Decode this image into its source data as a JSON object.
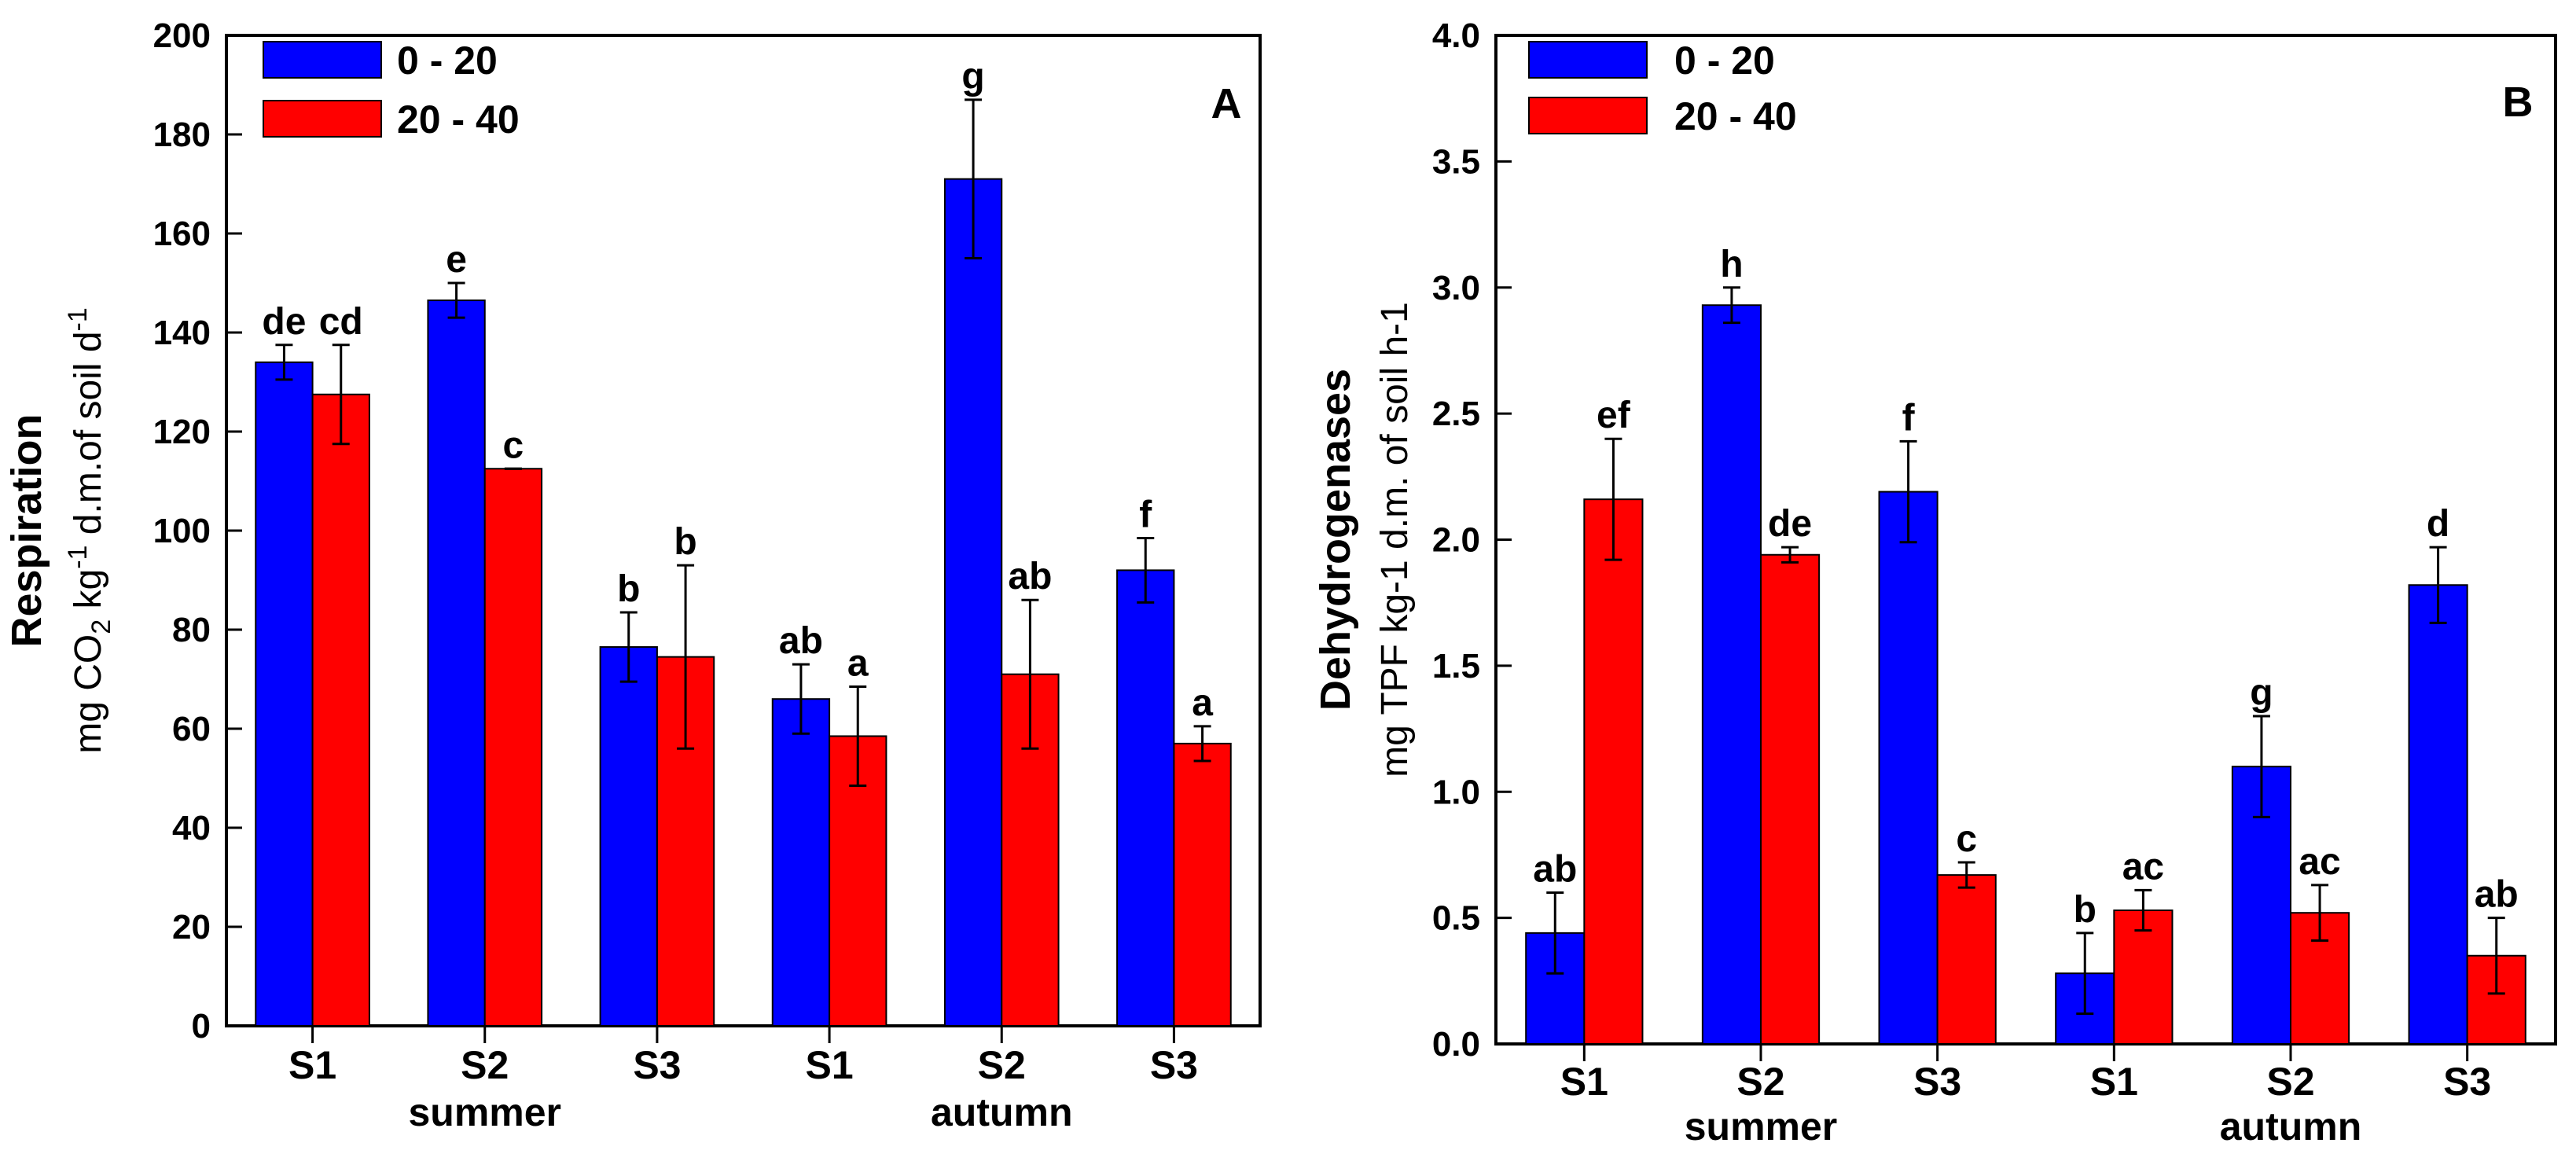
{
  "chart_data": [
    {
      "type": "bar",
      "panel": "A",
      "ylabel_main": "Respiration",
      "ylabel_sub_parts": [
        "mg CO",
        "2",
        " kg",
        "-1",
        " d.m.of soil d",
        "-1"
      ],
      "ylim": [
        0,
        200
      ],
      "yticks": [
        0,
        20,
        40,
        60,
        80,
        100,
        120,
        140,
        160,
        180,
        200
      ],
      "categories": [
        "S1",
        "S2",
        "S3",
        "S1",
        "S2",
        "S3"
      ],
      "groups": [
        {
          "label": "summer",
          "start": 0,
          "end": 2
        },
        {
          "label": "autumn",
          "start": 3,
          "end": 5
        }
      ],
      "legend_position": "top-left",
      "series": [
        {
          "name": "0 - 20",
          "color": "#0000ff",
          "values": [
            134,
            146.5,
            76.5,
            66,
            171,
            92
          ],
          "errors": [
            3.5,
            3.5,
            7,
            7,
            16,
            6.5
          ],
          "letters": [
            "de",
            "e",
            "b",
            "ab",
            "g",
            "f"
          ]
        },
        {
          "name": "20 - 40",
          "color": "#ff0000",
          "values": [
            127.5,
            112.5,
            74.5,
            58.5,
            71,
            57
          ],
          "errors": [
            10,
            0,
            18.5,
            10,
            15,
            3.5
          ],
          "letters": [
            "cd",
            "c",
            "b",
            "a",
            "ab",
            "a"
          ]
        }
      ]
    },
    {
      "type": "bar",
      "panel": "B",
      "ylabel_main": "Dehydrogenases",
      "ylabel_sub_parts": [
        "mg TPF kg-1 d.m. of soil h-1"
      ],
      "ylim": [
        0,
        4
      ],
      "yticks": [
        "0.0",
        "0.5",
        "1.0",
        "1.5",
        "2.0",
        "2.5",
        "3.0",
        "3.5",
        "4.0"
      ],
      "categories": [
        "S1",
        "S2",
        "S3",
        "S1",
        "S2",
        "S3"
      ],
      "groups": [
        {
          "label": "summer",
          "start": 0,
          "end": 2
        },
        {
          "label": "autumn",
          "start": 3,
          "end": 5
        }
      ],
      "legend_position": "top-left",
      "series": [
        {
          "name": "0 - 20",
          "color": "#0000ff",
          "values": [
            0.44,
            2.93,
            2.19,
            0.28,
            1.1,
            1.82
          ],
          "errors": [
            0.16,
            0.07,
            0.2,
            0.16,
            0.2,
            0.15
          ],
          "letters": [
            "ab",
            "h",
            "f",
            "b",
            "g",
            "d"
          ]
        },
        {
          "name": "20 - 40",
          "color": "#ff0000",
          "values": [
            2.16,
            1.94,
            0.67,
            0.53,
            0.52,
            0.35
          ],
          "errors": [
            0.24,
            0.03,
            0.05,
            0.08,
            0.11,
            0.15
          ],
          "letters": [
            "ef",
            "de",
            "c",
            "ac",
            "ac",
            "ab"
          ]
        }
      ]
    }
  ]
}
